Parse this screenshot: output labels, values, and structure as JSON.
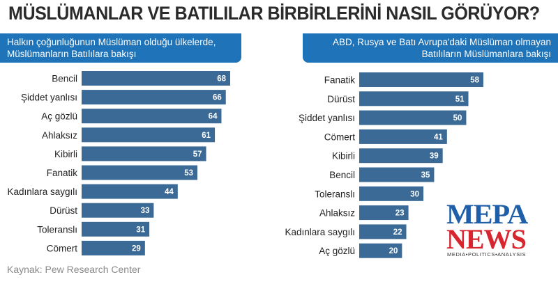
{
  "title": "MÜSLÜMANLAR VE BATILILAR BİRBİRLERİNİ NASIL GÖRÜYOR?",
  "source": "Kaynak: Pew Research Center",
  "logo": {
    "line1": "MEPA",
    "line2": "NEWS",
    "tagline": "MEDIA•POLITICS•ANALYSIS"
  },
  "colors": {
    "header": "#1f73b8",
    "bar": "#3b6a97",
    "logo_blue": "#1f5ea8",
    "logo_red": "#d8262f"
  },
  "chart_data": [
    {
      "type": "bar",
      "orientation": "horizontal",
      "title_lines": [
        "Halkın çoğunluğunun Müslüman olduğu ülkelerde,",
        "Müslümanların Batılılara bakışı"
      ],
      "categories": [
        "Bencil",
        "Şiddet yanlısı",
        "Aç gözlü",
        "Ahlaksız",
        "Kibirli",
        "Fanatik",
        "Kadınlara saygılı",
        "Dürüst",
        "Toleranslı",
        "Cömert"
      ],
      "values": [
        68,
        66,
        64,
        61,
        57,
        53,
        44,
        33,
        31,
        29
      ],
      "xlim": [
        0,
        68
      ]
    },
    {
      "type": "bar",
      "orientation": "horizontal",
      "title_lines": [
        "ABD, Rusya ve Batı Avrupa'daki Müslüman olmayan",
        "Batılıların Müslümanlara bakışı"
      ],
      "categories": [
        "Fanatik",
        "Dürüst",
        "Şiddet yanlısı",
        "Cömert",
        "Kibirli",
        "Bencil",
        "Toleranslı",
        "Ahlaksız",
        "Kadınlara saygılı",
        "Aç gözlü"
      ],
      "values": [
        58,
        51,
        50,
        41,
        39,
        35,
        30,
        23,
        22,
        20
      ],
      "xlim": [
        0,
        58
      ]
    }
  ]
}
